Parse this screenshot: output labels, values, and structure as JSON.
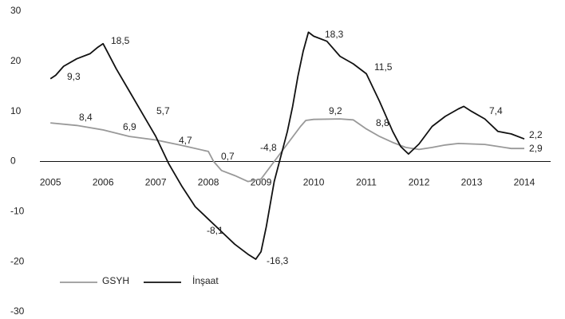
{
  "chart_data": {
    "type": "line",
    "ylim": [
      -30,
      30
    ],
    "yticks": [
      -30,
      -20,
      -10,
      0,
      10,
      20,
      30
    ],
    "xlim": [
      2004.8,
      2014.5
    ],
    "xticks": [
      2005,
      2006,
      2007,
      2008,
      2009,
      2010,
      2011,
      2012,
      2013,
      2014
    ],
    "series": [
      {
        "name": "GSYH",
        "color": "#999999",
        "x": [
          2005.0,
          2005.5,
          2006.0,
          2006.5,
          2007.0,
          2007.5,
          2008.0,
          2008.1,
          2008.25,
          2008.5,
          2008.75,
          2009.0,
          2009.25,
          2009.5,
          2009.75,
          2009.85,
          2010.0,
          2010.5,
          2010.75,
          2011.0,
          2011.25,
          2011.5,
          2011.75,
          2012.0,
          2012.25,
          2012.5,
          2012.75,
          2013.0,
          2013.25,
          2013.5,
          2013.75,
          2014.0
        ],
        "values": [
          7.7,
          7.2,
          6.3,
          5.0,
          4.3,
          3.2,
          2.0,
          0,
          -1.8,
          -2.8,
          -4,
          -3.5,
          0,
          3.5,
          7,
          8.2,
          8.4,
          8.5,
          8.3,
          6.5,
          5,
          3.8,
          2.8,
          2.4,
          2.8,
          3.3,
          3.6,
          3.5,
          3.4,
          3,
          2.6,
          2.6
        ]
      },
      {
        "name": "İnşaat",
        "color": "#111111",
        "x": [
          2005.0,
          2005.1,
          2005.25,
          2005.5,
          2005.75,
          2005.9,
          2006.0,
          2006.05,
          2006.25,
          2006.5,
          2006.75,
          2007.0,
          2007.25,
          2007.5,
          2007.75,
          2008.0,
          2008.25,
          2008.5,
          2008.75,
          2008.9,
          2009.0,
          2009.1,
          2009.25,
          2009.5,
          2009.6,
          2009.7,
          2009.8,
          2009.9,
          2010.0,
          2010.25,
          2010.5,
          2010.75,
          2011.0,
          2011.25,
          2011.5,
          2011.65,
          2011.8,
          2012.0,
          2012.25,
          2012.5,
          2012.75,
          2012.85,
          2013.0,
          2013.25,
          2013.5,
          2013.75,
          2014.0
        ],
        "values": [
          16.5,
          17.2,
          19.0,
          20.5,
          21.5,
          22.8,
          23.5,
          22.5,
          18.5,
          14,
          9.5,
          5,
          -0.5,
          -5,
          -9,
          -11.5,
          -14,
          -16.5,
          -18.5,
          -19.5,
          -18,
          -13,
          -4,
          6,
          11,
          17,
          22,
          25.8,
          25,
          24,
          21,
          19.5,
          17.5,
          12,
          6,
          3,
          1.5,
          3.5,
          7,
          9,
          10.5,
          11,
          10,
          8.5,
          6,
          5.5,
          4.5
        ]
      }
    ],
    "annotations": [
      {
        "value": 9.3,
        "label": "9,3"
      },
      {
        "value": 18.5,
        "label": "18,5"
      },
      {
        "value": 5.7,
        "label": "5,7"
      },
      {
        "value": 4.7,
        "label": "4,7"
      },
      {
        "value": -8.1,
        "label": "-8,1"
      },
      {
        "value": -16.3,
        "label": "-16,3"
      },
      {
        "value": 18.3,
        "label": "18,3"
      },
      {
        "value": 11.5,
        "label": "11,5"
      },
      {
        "value": 7.4,
        "label": "7,4"
      },
      {
        "value": 2.2,
        "label": "2,2"
      },
      {
        "value": 8.4,
        "label": "8,4"
      },
      {
        "value": 6.9,
        "label": "6,9"
      },
      {
        "value": 0.7,
        "label": "0,7"
      },
      {
        "value": -4.8,
        "label": "-4,8"
      },
      {
        "value": 9.2,
        "label": "9,2"
      },
      {
        "value": 8.8,
        "label": "8,8"
      },
      {
        "value": 2.9,
        "label": "2,9"
      }
    ]
  }
}
